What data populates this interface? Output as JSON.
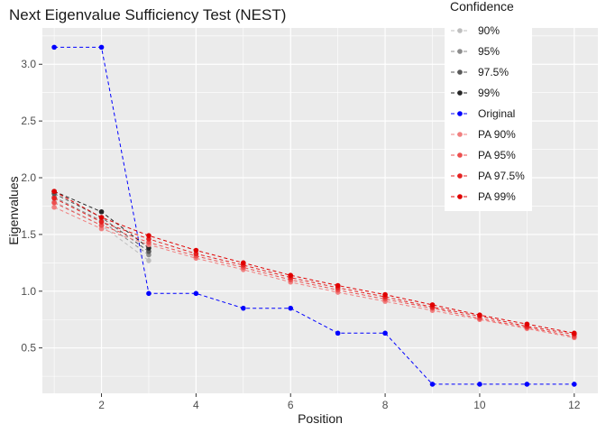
{
  "chart_data": {
    "type": "line",
    "title": "Next Eigenvalue Sufficiency Test (NEST)",
    "xlabel": "Position",
    "ylabel": "Eigenvalues",
    "xlim": [
      0.75,
      12.5
    ],
    "ylim": [
      0.1,
      3.32
    ],
    "xticks": [
      2,
      4,
      6,
      8,
      10,
      12
    ],
    "yticks": [
      0.5,
      1.0,
      1.5,
      2.0,
      2.5,
      3.0
    ],
    "ytick_labels": [
      "0.5",
      "1.0",
      "1.5",
      "2.0",
      "2.5",
      "3.0"
    ],
    "grid": true,
    "legend": {
      "title": "Confidence",
      "position": "top-right"
    },
    "series": [
      {
        "name": "90%",
        "color": "#bebebe",
        "x": [
          1,
          2,
          3
        ],
        "values": [
          1.79,
          1.58,
          1.27
        ]
      },
      {
        "name": "95%",
        "color": "#8c8c8c",
        "x": [
          1,
          2,
          3
        ],
        "values": [
          1.83,
          1.62,
          1.32
        ]
      },
      {
        "name": "97.5%",
        "color": "#595959",
        "x": [
          1,
          2,
          3
        ],
        "values": [
          1.86,
          1.65,
          1.35
        ]
      },
      {
        "name": "99%",
        "color": "#262626",
        "x": [
          1,
          2,
          3
        ],
        "values": [
          1.88,
          1.7,
          1.38
        ]
      },
      {
        "name": "Original",
        "color": "#0000ff",
        "x": [
          1,
          2,
          3,
          4,
          5,
          6,
          7,
          8,
          9,
          10,
          11,
          12
        ],
        "values": [
          3.15,
          3.15,
          0.98,
          0.98,
          0.85,
          0.85,
          0.63,
          0.63,
          0.18,
          0.18,
          0.18,
          0.18
        ]
      },
      {
        "name": "PA 90%",
        "color": "#f08080",
        "x": [
          1,
          2,
          3,
          4,
          5,
          6,
          7,
          8,
          9,
          10,
          11,
          12
        ],
        "values": [
          1.74,
          1.55,
          1.41,
          1.29,
          1.19,
          1.08,
          0.99,
          0.91,
          0.83,
          0.75,
          0.67,
          0.59
        ]
      },
      {
        "name": "PA 95%",
        "color": "#ec4f4f",
        "x": [
          1,
          2,
          3,
          4,
          5,
          6,
          7,
          8,
          9,
          10,
          11,
          12
        ],
        "values": [
          1.78,
          1.58,
          1.43,
          1.31,
          1.21,
          1.1,
          1.01,
          0.93,
          0.85,
          0.76,
          0.68,
          0.6
        ]
      },
      {
        "name": "PA 97.5%",
        "color": "#e52222",
        "x": [
          1,
          2,
          3,
          4,
          5,
          6,
          7,
          8,
          9,
          10,
          11,
          12
        ],
        "values": [
          1.82,
          1.61,
          1.46,
          1.33,
          1.23,
          1.12,
          1.03,
          0.95,
          0.86,
          0.78,
          0.69,
          0.62
        ]
      },
      {
        "name": "PA 99%",
        "color": "#e00000",
        "x": [
          1,
          2,
          3,
          4,
          5,
          6,
          7,
          8,
          9,
          10,
          11,
          12
        ],
        "values": [
          1.88,
          1.65,
          1.49,
          1.36,
          1.25,
          1.14,
          1.05,
          0.97,
          0.88,
          0.79,
          0.71,
          0.63
        ]
      }
    ]
  }
}
